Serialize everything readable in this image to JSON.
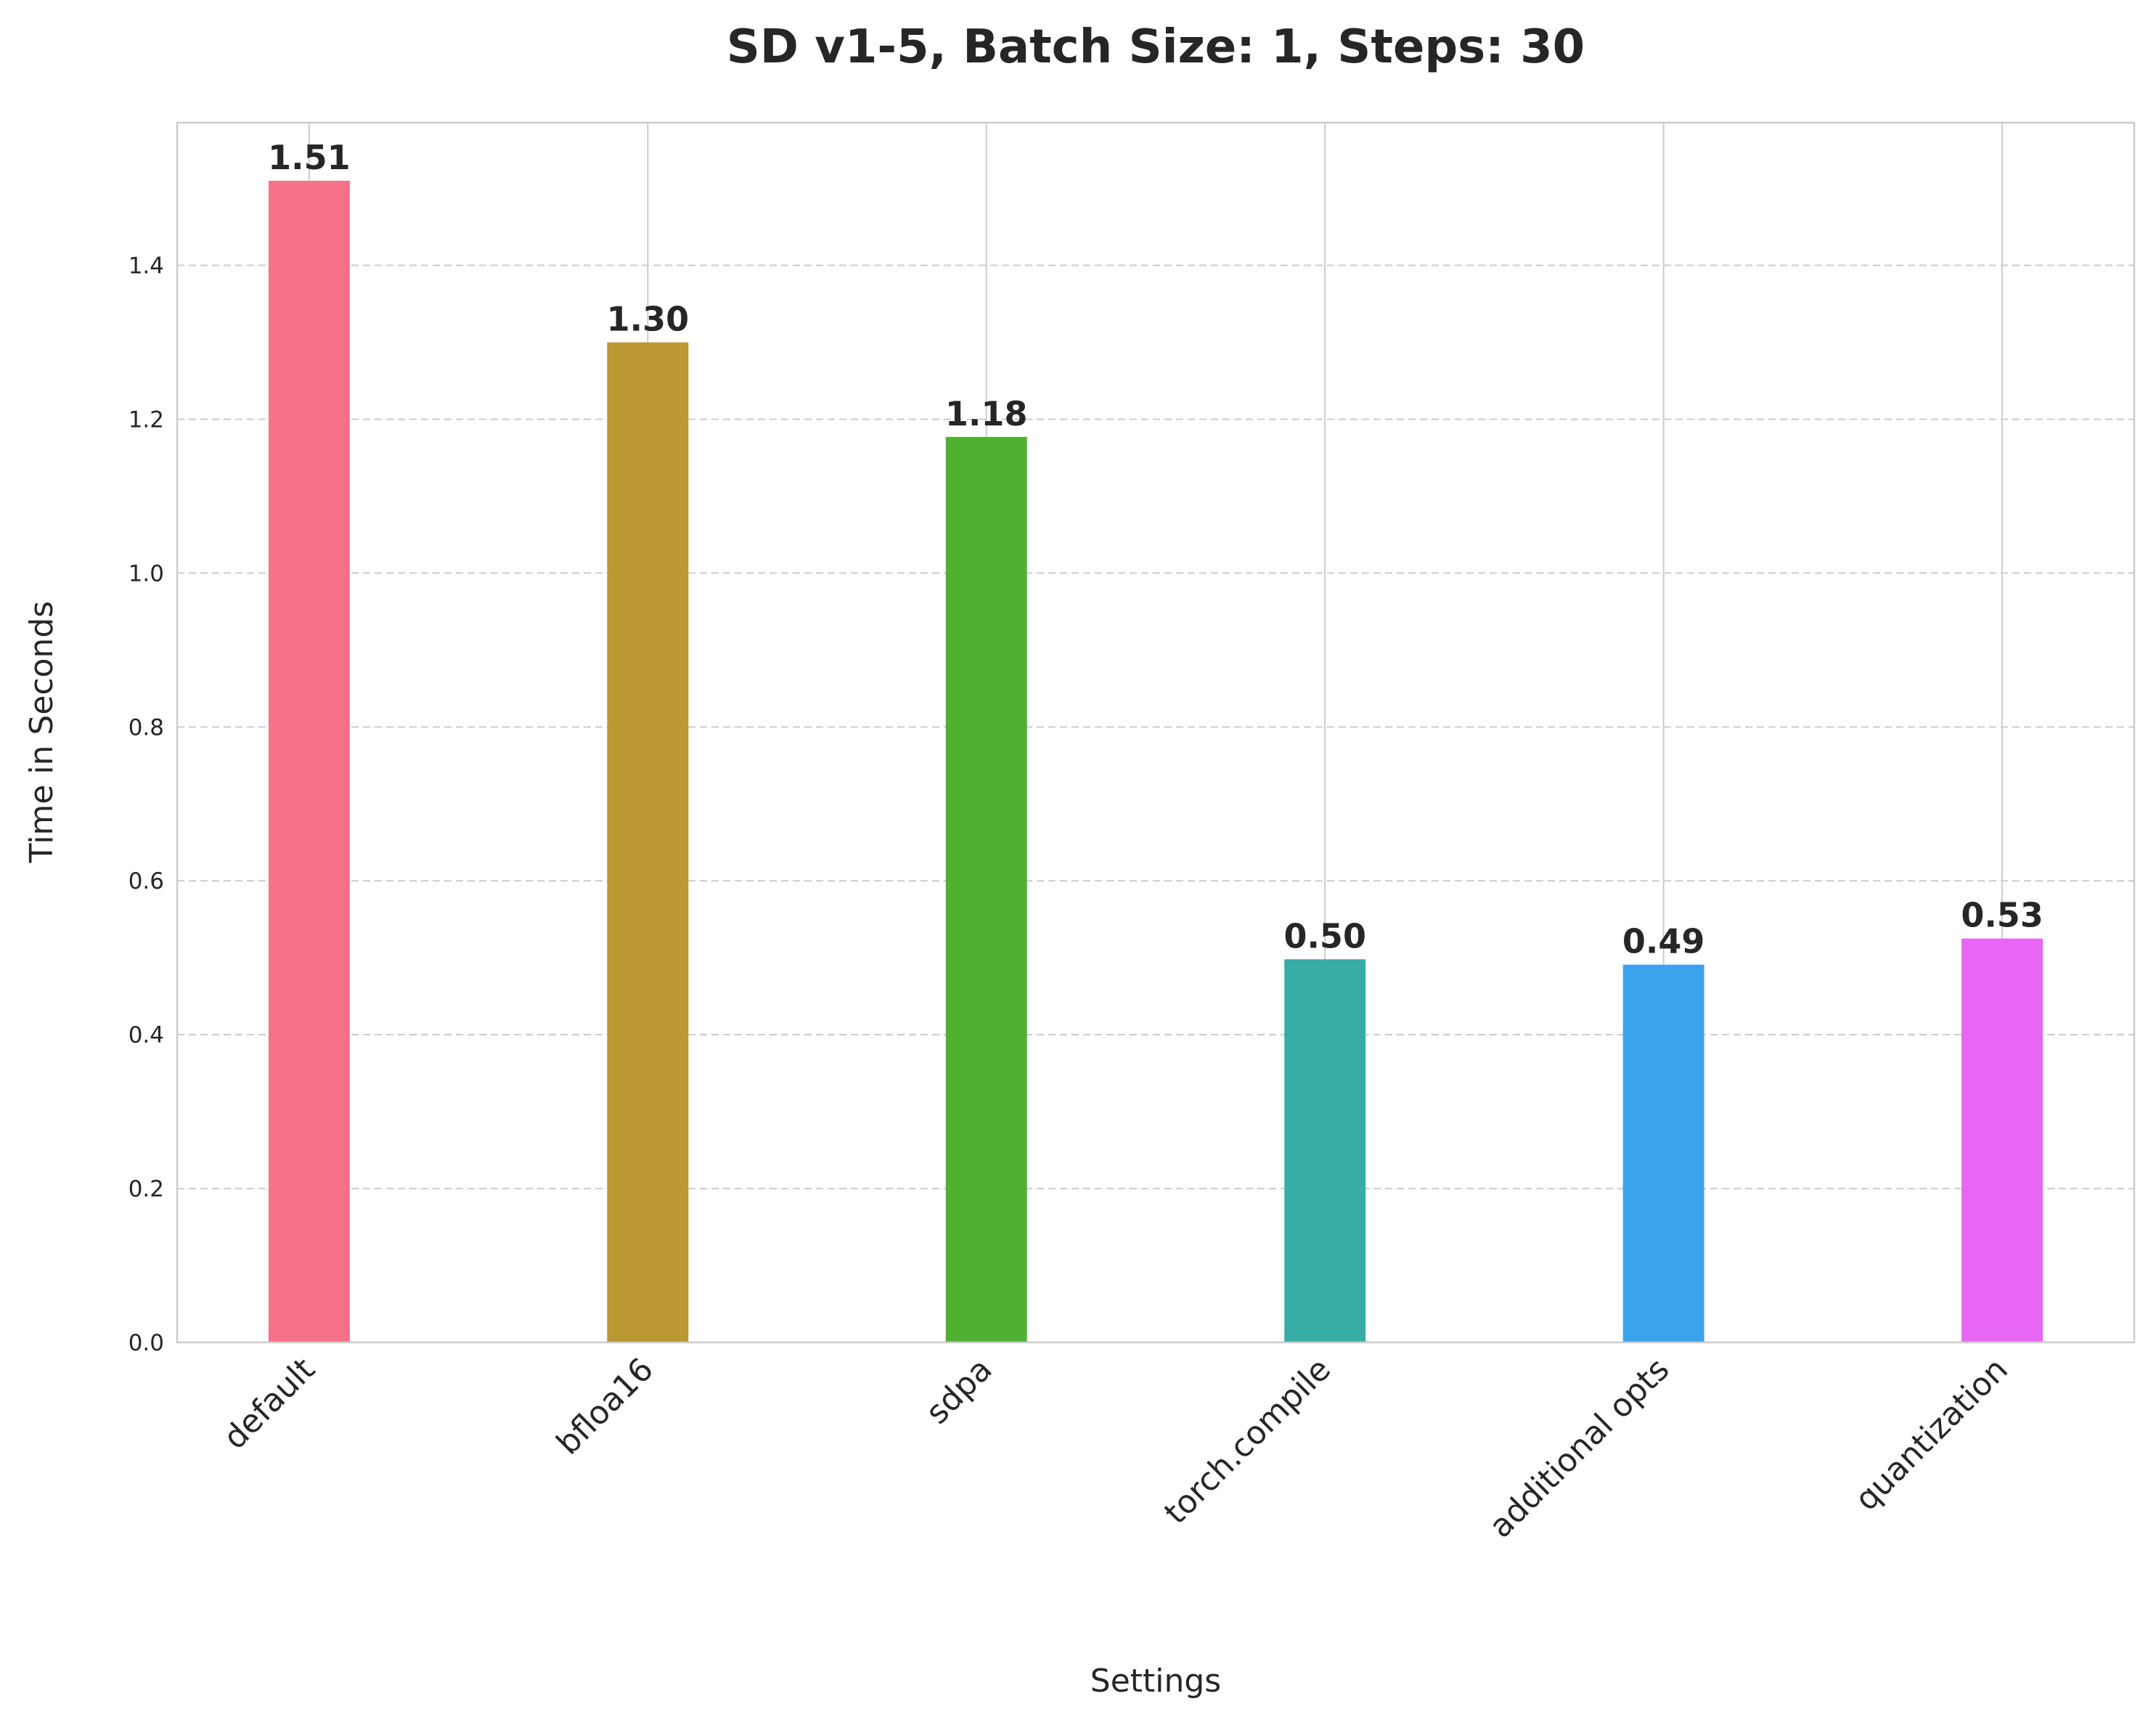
{
  "chart_data": {
    "type": "bar",
    "title": "SD v1-5, Batch Size: 1, Steps: 30",
    "xlabel": "Settings",
    "ylabel": "Time in Seconds",
    "categories": [
      "default",
      "bfloa16",
      "sdpa",
      "torch.compile",
      "additional opts",
      "quantization"
    ],
    "values": [
      1.51,
      1.3,
      1.177,
      0.498,
      0.491,
      0.525
    ],
    "value_labels": [
      "1.51",
      "1.30",
      "1.18",
      "0.50",
      "0.49",
      "0.53"
    ],
    "colors": [
      "#f77189",
      "#bb9832",
      "#50b131",
      "#36ada4",
      "#3ba3ec",
      "#e866f4"
    ],
    "ylim": [
      0,
      1.5855
    ],
    "yticks": [
      0.0,
      0.2,
      0.4,
      0.6,
      0.8,
      1.0,
      1.2,
      1.4
    ],
    "ytick_labels": [
      "0.0",
      "0.2",
      "0.4",
      "0.6",
      "0.8",
      "1.0",
      "1.2",
      "1.4"
    ],
    "grid": {
      "x": "solid",
      "y": "dashed"
    },
    "xtick_rotation": 45
  }
}
